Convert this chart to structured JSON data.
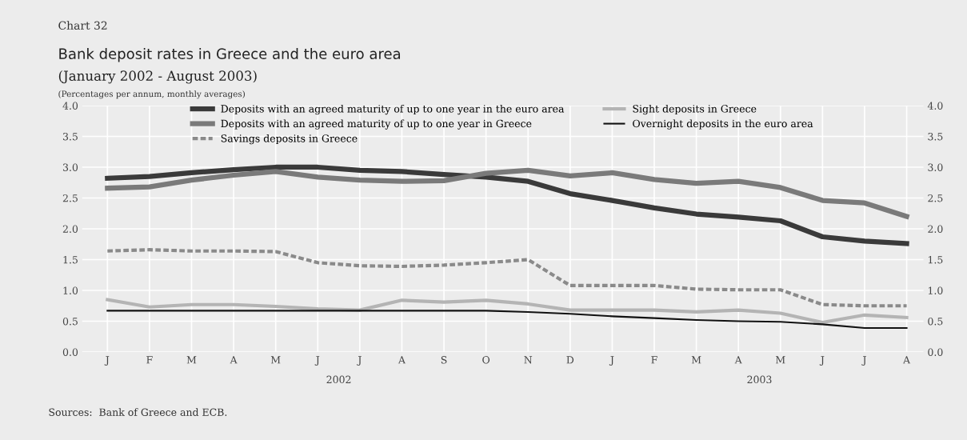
{
  "chart_data": {
    "type": "line",
    "title": "Bank deposit rates in Greece and the euro area",
    "subtitle": "(January 2002 - August 2003)\n(Percentages per annum, monthly averages)",
    "annotations": [
      "Chart 32",
      "2002",
      "2003",
      "Sources:  Bank of Greece and ECB."
    ],
    "categories": [
      "J",
      "F",
      "M",
      "A",
      "M",
      "J",
      "J",
      "A",
      "S",
      "O",
      "N",
      "D",
      "J",
      "F",
      "M",
      "A",
      "M",
      "J",
      "J",
      "A"
    ],
    "series": [
      {
        "name": "Deposits with an agreed maturity of up to one year in the euro area",
        "color": "#3a3a3a",
        "line_style": "solid",
        "values": [
          2.82,
          2.85,
          2.91,
          2.96,
          3.0,
          3.0,
          2.95,
          2.93,
          2.88,
          2.84,
          2.77,
          2.57,
          2.46,
          2.34,
          2.24,
          2.19,
          2.13,
          1.87,
          1.8,
          1.76
        ]
      },
      {
        "name": "Deposits with an agreed maturity of up to one year in Greece",
        "color": "#7a7a7a",
        "line_style": "solid",
        "values": [
          2.66,
          2.68,
          2.79,
          2.87,
          2.93,
          2.84,
          2.79,
          2.77,
          2.78,
          2.9,
          2.95,
          2.86,
          2.91,
          2.8,
          2.74,
          2.77,
          2.67,
          2.46,
          2.42,
          2.2
        ]
      },
      {
        "name": "Savings deposits in Greece",
        "color": "#8a8a8a",
        "line_style": "dashed",
        "values": [
          1.64,
          1.66,
          1.64,
          1.64,
          1.63,
          1.45,
          1.4,
          1.39,
          1.41,
          1.45,
          1.5,
          1.08,
          1.08,
          1.08,
          1.02,
          1.01,
          1.01,
          0.77,
          0.75,
          0.75
        ]
      },
      {
        "name": "Sight deposits in Greece",
        "color": "#b4b4b4",
        "line_style": "solid",
        "values": [
          0.85,
          0.73,
          0.77,
          0.77,
          0.74,
          0.7,
          0.68,
          0.84,
          0.81,
          0.84,
          0.78,
          0.68,
          0.68,
          0.68,
          0.65,
          0.68,
          0.63,
          0.48,
          0.6,
          0.56
        ]
      },
      {
        "name": "Overnight deposits in the euro area",
        "color": "#111111",
        "line_style": "solid",
        "values": [
          0.67,
          0.67,
          0.67,
          0.67,
          0.67,
          0.67,
          0.67,
          0.67,
          0.67,
          0.67,
          0.65,
          0.62,
          0.58,
          0.55,
          0.52,
          0.5,
          0.49,
          0.45,
          0.39,
          0.39
        ]
      }
    ],
    "ylim": [
      0,
      4
    ],
    "yticks": [
      {
        "value": 0,
        "label": "0.0"
      },
      {
        "value": 0.5,
        "label": "0.5"
      },
      {
        "value": 1,
        "label": "1.0"
      },
      {
        "value": 1.5,
        "label": "1.5"
      },
      {
        "value": 2,
        "label": "2.0"
      },
      {
        "value": 2.5,
        "label": "2.5"
      },
      {
        "value": 3,
        "label": "3.0"
      },
      {
        "value": 3.5,
        "label": "3.5"
      },
      {
        "value": 4,
        "label": "4.0"
      }
    ],
    "y2lim": [
      0,
      4
    ],
    "y2ticks": [
      {
        "value": 0,
        "label": "0.0"
      },
      {
        "value": 0.5,
        "label": "0.5"
      },
      {
        "value": 1,
        "label": "1.0"
      },
      {
        "value": 1.5,
        "label": "1.5"
      },
      {
        "value": 2,
        "label": "2.0"
      },
      {
        "value": 2.5,
        "label": "2.5"
      },
      {
        "value": 3,
        "label": "3.0"
      },
      {
        "value": 3.5,
        "label": "3.5"
      },
      {
        "value": 4,
        "label": "4.0"
      }
    ],
    "grid": true,
    "legend": "top",
    "marker": "none"
  }
}
